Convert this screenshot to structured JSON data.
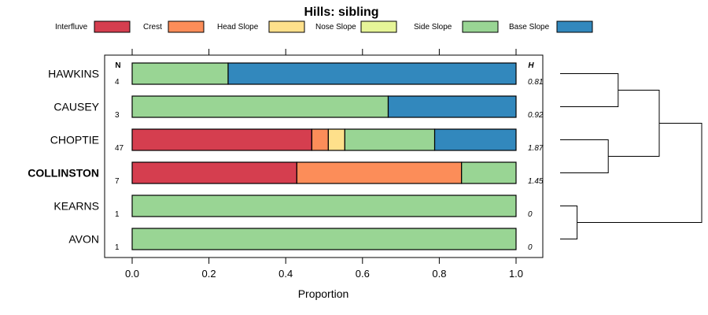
{
  "chart_data": {
    "type": "bar",
    "orientation": "horizontal",
    "stacked": true,
    "title": "Hills: sibling",
    "xlabel": "Proportion",
    "xlim": [
      0,
      1
    ],
    "xticks": [
      "0.0",
      "0.2",
      "0.4",
      "0.6",
      "0.8",
      "1.0"
    ],
    "xtick_values": [
      0,
      0.2,
      0.4,
      0.6,
      0.8,
      1.0
    ],
    "n_header": "N",
    "h_header": "H",
    "legend_position": "top",
    "series": [
      {
        "name": "Interfluve",
        "color": "#D53E4F"
      },
      {
        "name": "Crest",
        "color": "#FC8D59"
      },
      {
        "name": "Head Slope",
        "color": "#FEE08B"
      },
      {
        "name": "Nose Slope",
        "color": "#E6F598"
      },
      {
        "name": "Side Slope",
        "color": "#99D594"
      },
      {
        "name": "Base Slope",
        "color": "#3288BD"
      }
    ],
    "rows": [
      {
        "label": "HAWKINS",
        "bold": false,
        "n": "4",
        "h": "0.81",
        "values": [
          0,
          0,
          0,
          0,
          0.25,
          0.75
        ]
      },
      {
        "label": "CAUSEY",
        "bold": false,
        "n": "3",
        "h": "0.92",
        "values": [
          0,
          0,
          0,
          0,
          0.667,
          0.333
        ]
      },
      {
        "label": "CHOPTIE",
        "bold": false,
        "n": "47",
        "h": "1.87",
        "values": [
          0.468,
          0.043,
          0.043,
          0,
          0.234,
          0.213
        ]
      },
      {
        "label": "COLLINSTON",
        "bold": true,
        "n": "7",
        "h": "1.45",
        "values": [
          0.429,
          0.429,
          0,
          0,
          0.143,
          0
        ]
      },
      {
        "label": "KEARNS",
        "bold": false,
        "n": "1",
        "h": "0",
        "values": [
          0,
          0,
          0,
          0,
          1.0,
          0
        ]
      },
      {
        "label": "AVON",
        "bold": false,
        "n": "1",
        "h": "0",
        "values": [
          0,
          0,
          0,
          0,
          1.0,
          0
        ]
      }
    ],
    "dendrogram": {
      "merges": [
        {
          "a": "HAWKINS",
          "b": "CAUSEY",
          "height": 0.41
        },
        {
          "a": "CHOPTIE",
          "b": "COLLINSTON",
          "height": 0.34
        },
        {
          "a": "KEARNS",
          "b": "AVON",
          "height": 0.12
        },
        {
          "a": "HAWKINS+CAUSEY",
          "b": "CHOPTIE+COLLINSTON",
          "height": 0.7
        },
        {
          "a": "ROOT_LEFT",
          "b": "KEARNS+AVON",
          "height": 1.0
        }
      ]
    }
  }
}
